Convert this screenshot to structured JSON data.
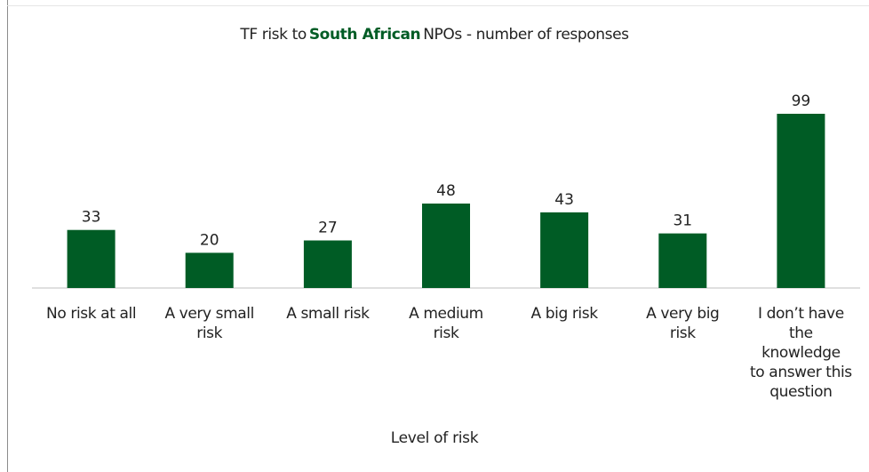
{
  "chart_data": {
    "type": "bar",
    "title": {
      "before": "TF risk to",
      "highlight": "South African",
      "after": "NPOs - number of responses"
    },
    "xlabel": "Level of risk",
    "ylabel": "",
    "categories": [
      "No risk at all",
      "A very small\nrisk",
      "A small risk",
      "A medium\nrisk",
      "A big risk",
      "A very big\nrisk",
      "I don’t have\nthe\nknowledge\nto answer this\nquestion"
    ],
    "values": [
      33,
      20,
      27,
      48,
      43,
      31,
      99
    ],
    "ylim": [
      0,
      110
    ],
    "grid": false,
    "legend": "none",
    "colors": {
      "bar": "#005c25",
      "highlight_text": "#005c25",
      "axis": "#bfbfbf"
    }
  }
}
